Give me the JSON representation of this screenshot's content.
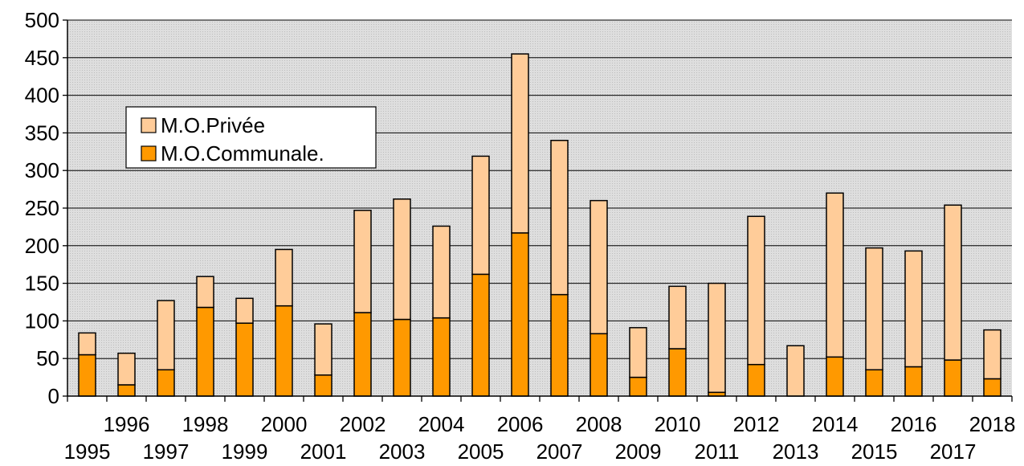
{
  "chart_data": {
    "type": "bar",
    "stacked": true,
    "categories": [
      "1995",
      "1996",
      "1997",
      "1998",
      "1999",
      "2000",
      "2001",
      "2002",
      "2003",
      "2004",
      "2005",
      "2006",
      "2007",
      "2008",
      "2009",
      "2010",
      "2011",
      "2012",
      "2013",
      "2014",
      "2015",
      "2016",
      "2017",
      "2018"
    ],
    "series": [
      {
        "name": "M.O.Communale.",
        "color": "#ff9900",
        "values": [
          55,
          15,
          35,
          118,
          97,
          120,
          28,
          111,
          102,
          104,
          162,
          217,
          135,
          83,
          25,
          63,
          5,
          42,
          0,
          52,
          35,
          39,
          48,
          23
        ]
      },
      {
        "name": "M.O.Privée",
        "color": "#ffcc99",
        "values": [
          29,
          42,
          92,
          41,
          33,
          75,
          68,
          136,
          160,
          122,
          157,
          238,
          205,
          177,
          66,
          83,
          145,
          197,
          67,
          218,
          162,
          154,
          206,
          65
        ]
      }
    ],
    "ylim": [
      0,
      500
    ],
    "yticks": [
      "0",
      "50",
      "100",
      "150",
      "200",
      "250",
      "300",
      "350",
      "400",
      "450",
      "500"
    ],
    "grid": true,
    "legend": {
      "position": "top-left",
      "entries": [
        {
          "label": "M.O.Privée",
          "color": "#ffcc99"
        },
        {
          "label": "M.O.Communale.",
          "color": "#ff9900"
        }
      ]
    },
    "title": "",
    "xlabel": "",
    "ylabel": ""
  }
}
